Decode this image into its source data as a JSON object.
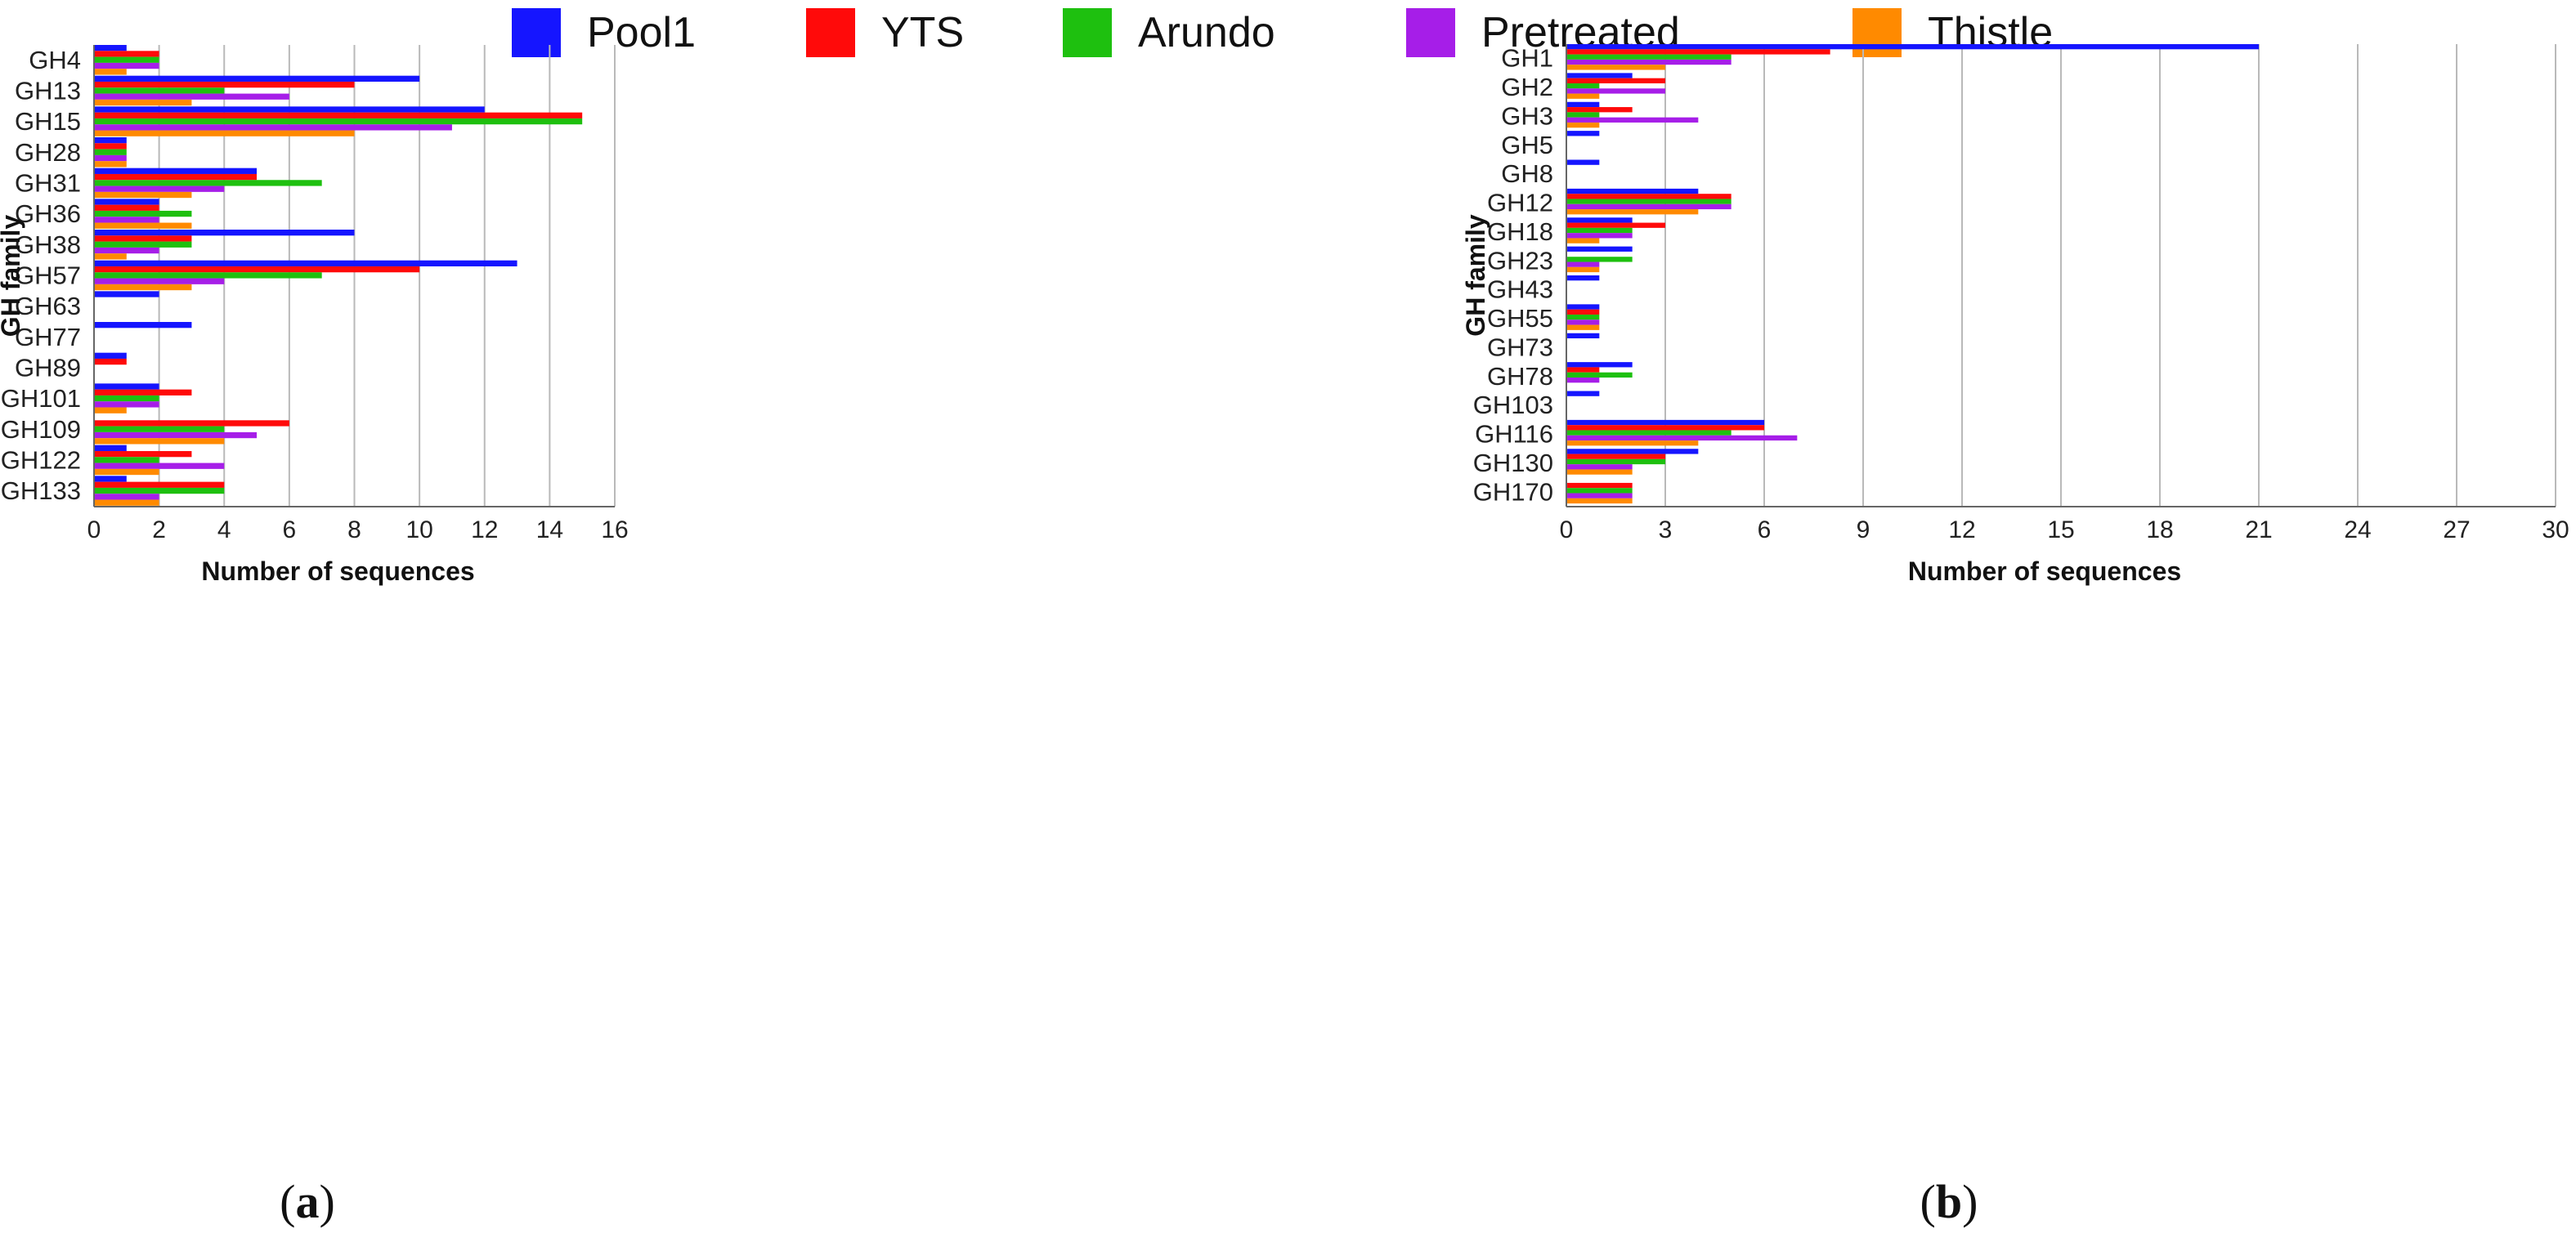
{
  "legend": {
    "items": [
      {
        "label": "Pool1",
        "color": "#1515ff"
      },
      {
        "label": "YTS",
        "color": "#ff0a0a"
      },
      {
        "label": "Arundo",
        "color": "#1ec00f"
      },
      {
        "label": "Pretreated",
        "color": "#a61ee8"
      },
      {
        "label": "Thistle",
        "color": "#ff8a00"
      }
    ]
  },
  "chart_data": [
    {
      "type": "bar",
      "orientation": "horizontal",
      "panel_label": "a",
      "xlabel": "Number of sequences",
      "ylabel": "GH family",
      "xlim": [
        0,
        16
      ],
      "xticks": [
        0,
        2,
        4,
        6,
        8,
        10,
        12,
        14,
        16
      ],
      "grid": true,
      "categories": [
        "GH4",
        "GH13",
        "GH15",
        "GH28",
        "GH31",
        "GH36",
        "GH38",
        "GH57",
        "GH63",
        "GH77",
        "GH89",
        "GH101",
        "GH109",
        "GH122",
        "GH133"
      ],
      "series": [
        {
          "name": "Pool1",
          "values": [
            1,
            10,
            12,
            1,
            5,
            2,
            8,
            13,
            2,
            3,
            1,
            2,
            0,
            1,
            1
          ]
        },
        {
          "name": "YTS",
          "values": [
            2,
            8,
            15,
            1,
            5,
            2,
            3,
            10,
            0,
            0,
            1,
            3,
            6,
            3,
            4
          ]
        },
        {
          "name": "Arundo",
          "values": [
            2,
            4,
            15,
            1,
            7,
            3,
            3,
            7,
            0,
            0,
            0,
            2,
            4,
            2,
            4
          ]
        },
        {
          "name": "Pretreated",
          "values": [
            2,
            6,
            11,
            1,
            4,
            2,
            2,
            4,
            0,
            0,
            0,
            2,
            5,
            4,
            2
          ]
        },
        {
          "name": "Thistle",
          "values": [
            1,
            3,
            8,
            1,
            3,
            3,
            1,
            3,
            0,
            0,
            0,
            1,
            4,
            2,
            2
          ]
        }
      ]
    },
    {
      "type": "bar",
      "orientation": "horizontal",
      "panel_label": "b",
      "xlabel": "Number of sequences",
      "ylabel": "GH family",
      "xlim": [
        0,
        30
      ],
      "xticks": [
        0,
        3,
        6,
        9,
        12,
        15,
        18,
        21,
        24,
        27,
        30
      ],
      "grid": true,
      "categories": [
        "GH1",
        "GH2",
        "GH3",
        "GH5",
        "GH8",
        "GH12",
        "GH18",
        "GH23",
        "GH43",
        "GH55",
        "GH73",
        "GH78",
        "GH103",
        "GH116",
        "GH130",
        "GH170"
      ],
      "series": [
        {
          "name": "Pool1",
          "values": [
            21,
            2,
            1,
            1,
            1,
            4,
            2,
            2,
            1,
            1,
            1,
            2,
            1,
            6,
            4,
            0
          ]
        },
        {
          "name": "YTS",
          "values": [
            8,
            3,
            2,
            0,
            0,
            5,
            3,
            0,
            0,
            1,
            0,
            1,
            0,
            6,
            3,
            2
          ]
        },
        {
          "name": "Arundo",
          "values": [
            5,
            1,
            1,
            0,
            0,
            5,
            2,
            2,
            0,
            1,
            0,
            2,
            0,
            5,
            3,
            2
          ]
        },
        {
          "name": "Pretreated",
          "values": [
            5,
            3,
            4,
            0,
            0,
            5,
            2,
            1,
            0,
            1,
            0,
            1,
            0,
            7,
            2,
            2
          ]
        },
        {
          "name": "Thistle",
          "values": [
            3,
            1,
            1,
            0,
            0,
            4,
            1,
            1,
            0,
            1,
            0,
            0,
            0,
            4,
            2,
            2
          ]
        }
      ]
    }
  ]
}
